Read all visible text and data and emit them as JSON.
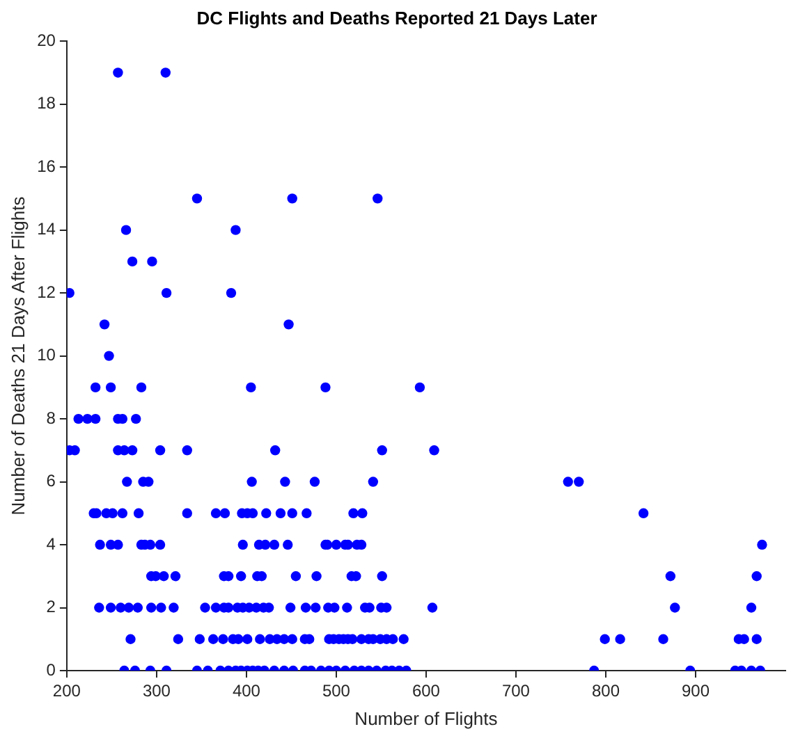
{
  "chart_data": {
    "type": "scatter",
    "title": "DC Flights and Deaths Reported 21 Days Later",
    "xlabel": "Number of Flights",
    "ylabel": "Number of Deaths 21 Days After Flights",
    "xlim": [
      200,
      1000
    ],
    "xticks": [
      200,
      300,
      400,
      500,
      600,
      700,
      800,
      900
    ],
    "ylim": [
      0,
      20
    ],
    "yticks": [
      0,
      2,
      4,
      6,
      8,
      10,
      12,
      14,
      16,
      18,
      20
    ],
    "grid": false,
    "legend": false,
    "marker": "circle",
    "series": [
      {
        "color": "#0000ff",
        "x": [
          257,
          310,
          345,
          451,
          546,
          266,
          388,
          273,
          295,
          203,
          311,
          383,
          242,
          447,
          247,
          232,
          249,
          283,
          405,
          488,
          593,
          213,
          223,
          232,
          257,
          262,
          277,
          203,
          209,
          257,
          264,
          273,
          304,
          334,
          432,
          551,
          609,
          267,
          285,
          291,
          406,
          443,
          476,
          541,
          758,
          770,
          230,
          233,
          244,
          251,
          262,
          280,
          334,
          366,
          376,
          395,
          401,
          407,
          422,
          438,
          451,
          467,
          519,
          529,
          842,
          237,
          249,
          257,
          283,
          287,
          293,
          304,
          396,
          414,
          421,
          431,
          446,
          488,
          490,
          500,
          510,
          513,
          523,
          528,
          974,
          294,
          299,
          308,
          321,
          375,
          380,
          394,
          412,
          417,
          455,
          478,
          517,
          522,
          551,
          872,
          968,
          236,
          249,
          260,
          269,
          279,
          294,
          305,
          319,
          354,
          366,
          375,
          380,
          390,
          396,
          403,
          411,
          419,
          425,
          449,
          466,
          477,
          491,
          498,
          512,
          532,
          537,
          550,
          556,
          607,
          877,
          962,
          271,
          324,
          348,
          363,
          374,
          385,
          391,
          401,
          415,
          426,
          434,
          442,
          451,
          465,
          470,
          492,
          497,
          503,
          508,
          513,
          518,
          528,
          536,
          541,
          549,
          556,
          563,
          575,
          799,
          816,
          864,
          948,
          954,
          968,
          264,
          276,
          293,
          311,
          345,
          357,
          371,
          380,
          388,
          394,
          401,
          407,
          413,
          420,
          431,
          442,
          452,
          465,
          472,
          483,
          492,
          500,
          510,
          520,
          528,
          536,
          545,
          555,
          562,
          570,
          578,
          787,
          894,
          944,
          951,
          962,
          972
        ],
        "values": [
          19,
          19,
          15,
          15,
          15,
          14,
          14,
          13,
          13,
          12,
          12,
          12,
          11,
          11,
          10,
          9,
          9,
          9,
          9,
          9,
          9,
          8,
          8,
          8,
          8,
          8,
          8,
          7,
          7,
          7,
          7,
          7,
          7,
          7,
          7,
          7,
          7,
          6,
          6,
          6,
          6,
          6,
          6,
          6,
          6,
          6,
          5,
          5,
          5,
          5,
          5,
          5,
          5,
          5,
          5,
          5,
          5,
          5,
          5,
          5,
          5,
          5,
          5,
          5,
          5,
          4,
          4,
          4,
          4,
          4,
          4,
          4,
          4,
          4,
          4,
          4,
          4,
          4,
          4,
          4,
          4,
          4,
          4,
          4,
          4,
          3,
          3,
          3,
          3,
          3,
          3,
          3,
          3,
          3,
          3,
          3,
          3,
          3,
          3,
          3,
          3,
          2,
          2,
          2,
          2,
          2,
          2,
          2,
          2,
          2,
          2,
          2,
          2,
          2,
          2,
          2,
          2,
          2,
          2,
          2,
          2,
          2,
          2,
          2,
          2,
          2,
          2,
          2,
          2,
          2,
          2,
          2,
          1,
          1,
          1,
          1,
          1,
          1,
          1,
          1,
          1,
          1,
          1,
          1,
          1,
          1,
          1,
          1,
          1,
          1,
          1,
          1,
          1,
          1,
          1,
          1,
          1,
          1,
          1,
          1,
          1,
          1,
          1,
          1,
          1,
          1,
          0,
          0,
          0,
          0,
          0,
          0,
          0,
          0,
          0,
          0,
          0,
          0,
          0,
          0,
          0,
          0,
          0,
          0,
          0,
          0,
          0,
          0,
          0,
          0,
          0,
          0,
          0,
          0,
          0,
          0,
          0,
          0,
          0,
          0,
          0,
          0,
          0
        ]
      }
    ]
  }
}
